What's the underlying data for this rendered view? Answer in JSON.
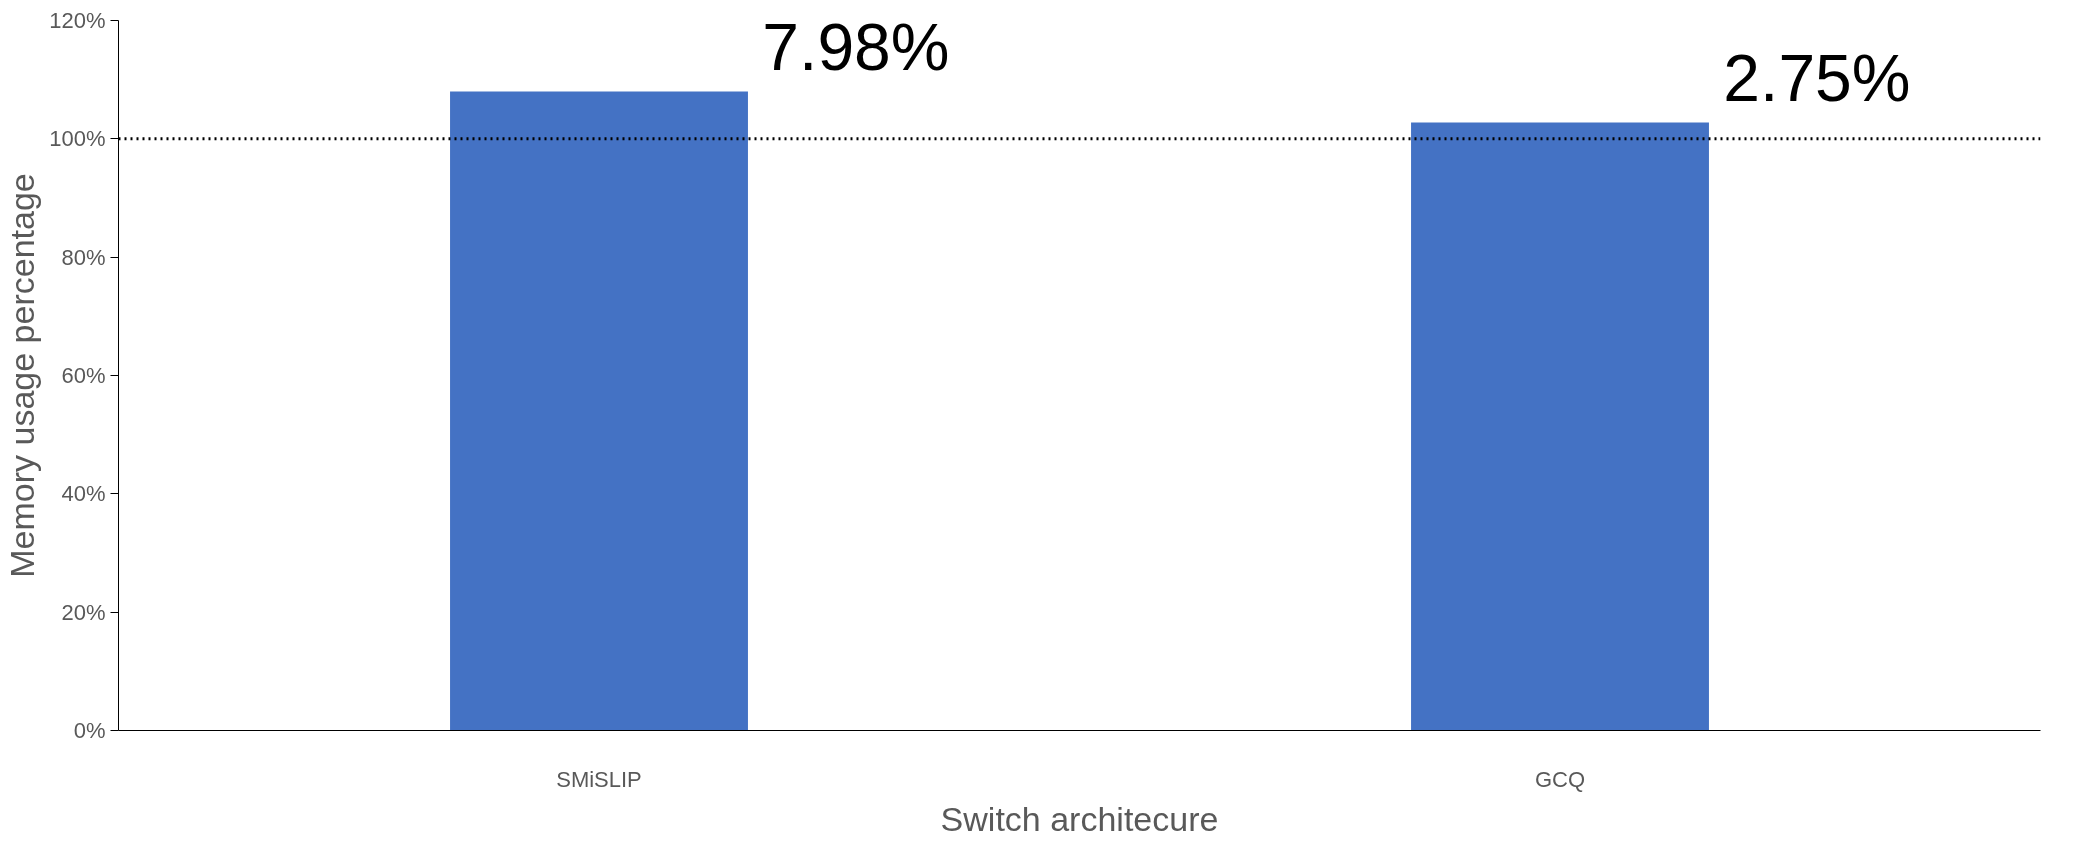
{
  "chart_data": {
    "type": "bar",
    "xlabel": "Switch architecure",
    "ylabel": "Memory usage percentage",
    "categories": [
      "SMiSLIP",
      "GCQ"
    ],
    "values": [
      107.98,
      102.75
    ],
    "color": "#4472c4",
    "ylim": [
      0,
      120
    ],
    "yticks": [
      {
        "value": 0,
        "label": "0%"
      },
      {
        "value": 20,
        "label": "20%"
      },
      {
        "value": 40,
        "label": "40%"
      },
      {
        "value": 60,
        "label": "60%"
      },
      {
        "value": 80,
        "label": "80%"
      },
      {
        "value": 100,
        "label": "100%"
      },
      {
        "value": 120,
        "label": "120%"
      }
    ],
    "ref_lines": [
      {
        "axis": "y",
        "value": 100,
        "color": "#000000",
        "line_style": "dotted"
      }
    ],
    "annotations": [
      {
        "text": "7.98%",
        "x": "SMiSLIP",
        "y": 107.98
      },
      {
        "text": "2.75%",
        "x": "GCQ",
        "y": 102.75
      }
    ],
    "grid": false
  }
}
